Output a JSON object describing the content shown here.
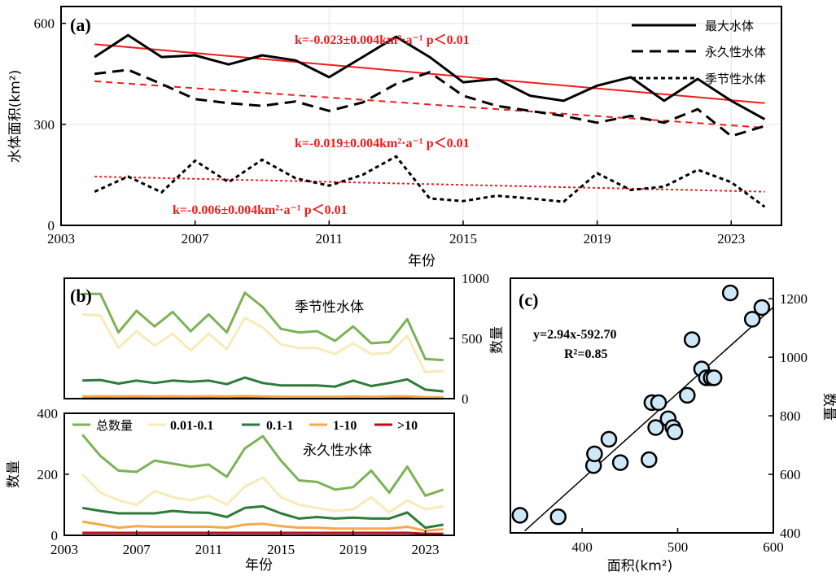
{
  "chart_data": [
    {
      "panel": "(a)",
      "type": "line",
      "ylabel": "水体面积(km²)",
      "xlabel": "年份",
      "x": [
        2004,
        2005,
        2006,
        2007,
        2008,
        2009,
        2010,
        2011,
        2012,
        2013,
        2014,
        2015,
        2016,
        2017,
        2018,
        2019,
        2020,
        2021,
        2022,
        2023,
        2024
      ],
      "xticks": [
        2003,
        2007,
        2011,
        2015,
        2019,
        2023
      ],
      "xlim": [
        2003,
        2024.5
      ],
      "ylim": [
        0,
        650
      ],
      "yticks": [
        0,
        300,
        600
      ],
      "series": [
        {
          "name": "最大水体",
          "style": "solid",
          "color": "#000000",
          "values": [
            500,
            565,
            500,
            505,
            478,
            505,
            490,
            440,
            500,
            560,
            500,
            425,
            435,
            385,
            370,
            415,
            440,
            370,
            435,
            370,
            315
          ]
        },
        {
          "name": "永久性水体",
          "style": "dashed",
          "color": "#000000",
          "values": [
            450,
            462,
            420,
            375,
            363,
            355,
            368,
            340,
            365,
            420,
            455,
            385,
            355,
            340,
            325,
            305,
            325,
            305,
            345,
            265,
            295
          ]
        },
        {
          "name": "季节性水体",
          "style": "dotted",
          "color": "#000000",
          "values": [
            100,
            145,
            98,
            192,
            128,
            195,
            140,
            118,
            150,
            205,
            80,
            72,
            88,
            80,
            70,
            155,
            105,
            115,
            165,
            128,
            55
          ]
        }
      ],
      "trends": [
        {
          "from": [
            2004,
            538
          ],
          "to": [
            2024,
            363
          ],
          "style": "solid",
          "color": "#ee1c1c"
        },
        {
          "from": [
            2004,
            428
          ],
          "to": [
            2024,
            290
          ],
          "style": "dashed",
          "color": "#ee1c1c"
        },
        {
          "from": [
            2004,
            145
          ],
          "to": [
            2024,
            100
          ],
          "style": "dotted",
          "color": "#ee1c1c"
        }
      ],
      "annotations": [
        "k=-0.023±0.004km²·a⁻¹   p＜0.01",
        "k=-0.019±0.004km²·a⁻¹   p＜0.01",
        "k=-0.006±0.004km²·a⁻¹   p＜0.01"
      ]
    },
    {
      "panel": "(b)",
      "subtitle": "季节性水体",
      "type": "line",
      "ylabel": "数量",
      "ylim": [
        0,
        1000
      ],
      "yticks": [
        0,
        500,
        1000
      ],
      "x": [
        2004,
        2005,
        2006,
        2007,
        2008,
        2009,
        2010,
        2011,
        2012,
        2013,
        2014,
        2015,
        2016,
        2017,
        2018,
        2019,
        2020,
        2021,
        2022,
        2023,
        2024
      ],
      "series": [
        {
          "name": "总数量",
          "color": "#7cb255",
          "values": [
            870,
            870,
            550,
            730,
            600,
            720,
            560,
            700,
            550,
            880,
            760,
            580,
            550,
            560,
            480,
            600,
            460,
            470,
            660,
            330,
            320
          ]
        },
        {
          "name": "0.01-0.1",
          "color": "#f5ecb8",
          "values": [
            700,
            690,
            420,
            560,
            440,
            540,
            400,
            540,
            410,
            670,
            590,
            450,
            420,
            420,
            370,
            460,
            370,
            380,
            520,
            220,
            230
          ]
        },
        {
          "name": "0.1-1",
          "color": "#2d7a3a",
          "values": [
            150,
            155,
            125,
            150,
            130,
            150,
            140,
            150,
            120,
            175,
            130,
            110,
            110,
            110,
            100,
            150,
            105,
            130,
            160,
            75,
            60
          ]
        },
        {
          "name": "1-10",
          "color": "#f5a94a",
          "values": [
            18,
            20,
            18,
            20,
            18,
            20,
            18,
            20,
            18,
            22,
            18,
            16,
            15,
            15,
            15,
            18,
            15,
            18,
            20,
            12,
            10
          ]
        },
        {
          "name": ">10",
          "color": "#b50e22",
          "values": [
            3,
            3,
            3,
            3,
            3,
            3,
            3,
            3,
            3,
            3,
            3,
            3,
            3,
            3,
            3,
            3,
            3,
            3,
            3,
            3,
            3
          ]
        }
      ]
    },
    {
      "panel": "(b)",
      "subtitle": "永久性水体",
      "type": "line",
      "xlabel": "年份",
      "ylabel": "数量",
      "ylim": [
        0,
        400
      ],
      "yticks": [
        0,
        200,
        400
      ],
      "xticks": [
        2003,
        2007,
        2011,
        2015,
        2019,
        2023
      ],
      "x": [
        2004,
        2005,
        2006,
        2007,
        2008,
        2009,
        2010,
        2011,
        2012,
        2013,
        2014,
        2015,
        2016,
        2017,
        2018,
        2019,
        2020,
        2021,
        2022,
        2023,
        2024
      ],
      "series": [
        {
          "name": "总数量",
          "color": "#7cb255",
          "values": [
            330,
            260,
            212,
            208,
            245,
            235,
            225,
            232,
            192,
            285,
            325,
            245,
            180,
            175,
            150,
            158,
            212,
            140,
            225,
            130,
            150
          ]
        },
        {
          "name": "0.01-0.1",
          "color": "#f5ecb8",
          "values": [
            200,
            140,
            115,
            100,
            145,
            125,
            115,
            130,
            100,
            160,
            190,
            125,
            100,
            90,
            80,
            85,
            125,
            75,
            115,
            85,
            95
          ]
        },
        {
          "name": "0.1-1",
          "color": "#2d7a3a",
          "values": [
            90,
            80,
            72,
            72,
            72,
            80,
            75,
            74,
            60,
            90,
            95,
            72,
            55,
            60,
            55,
            58,
            55,
            55,
            75,
            25,
            35
          ]
        },
        {
          "name": "1-10",
          "color": "#f5a94a",
          "values": [
            45,
            35,
            25,
            30,
            28,
            28,
            28,
            28,
            25,
            35,
            38,
            30,
            25,
            25,
            22,
            22,
            22,
            22,
            28,
            15,
            20
          ]
        },
        {
          "name": ">10",
          "color": "#b50e22",
          "values": [
            8,
            8,
            8,
            8,
            8,
            8,
            8,
            8,
            8,
            8,
            8,
            8,
            8,
            8,
            8,
            8,
            8,
            8,
            8,
            5,
            5
          ]
        }
      ]
    },
    {
      "panel": "(c)",
      "type": "scatter",
      "xlabel": "面积(km²)",
      "ylabel": "数量",
      "xlim": [
        325,
        600
      ],
      "ylim": [
        400,
        1270
      ],
      "xticks": [
        400,
        500,
        600
      ],
      "yticks": [
        400,
        600,
        800,
        1000,
        1200
      ],
      "points": [
        [
          335,
          460
        ],
        [
          375,
          455
        ],
        [
          412,
          630
        ],
        [
          413,
          670
        ],
        [
          428,
          720
        ],
        [
          440,
          640
        ],
        [
          470,
          650
        ],
        [
          473,
          845
        ],
        [
          477,
          760
        ],
        [
          480,
          845
        ],
        [
          490,
          790
        ],
        [
          495,
          760
        ],
        [
          497,
          745
        ],
        [
          510,
          870
        ],
        [
          515,
          1060
        ],
        [
          525,
          960
        ],
        [
          530,
          930
        ],
        [
          535,
          930
        ],
        [
          538,
          930
        ],
        [
          555,
          1220
        ],
        [
          578,
          1130
        ],
        [
          588,
          1170
        ]
      ],
      "equation": "y=2.94x-592.70",
      "r2": "R²=0.85",
      "fit": {
        "slope": 2.94,
        "intercept": -592.7
      }
    }
  ],
  "legend_a": [
    "最大水体",
    "永久性水体",
    "季节性水体"
  ],
  "legend_b": [
    "总数量",
    "0.01-0.1",
    "0.1-1",
    "1-10",
    ">10"
  ]
}
